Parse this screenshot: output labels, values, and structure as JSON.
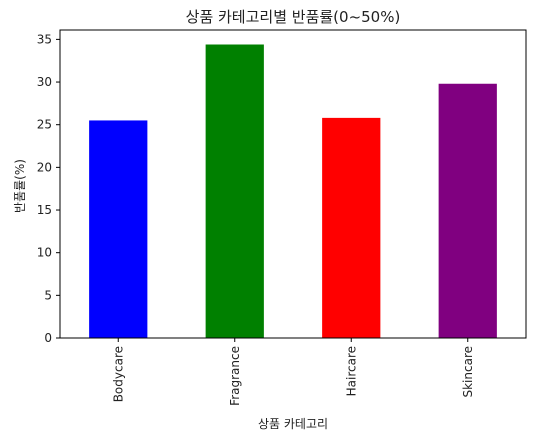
{
  "chart_data": {
    "type": "bar",
    "title": "상품 카테고리별 반품률(0~50%)",
    "xlabel": "상품 카테고리",
    "ylabel": "반품률(%)",
    "categories": [
      "Bodycare",
      "Fragrance",
      "Haircare",
      "Skincare"
    ],
    "values": [
      25.5,
      34.4,
      25.8,
      29.8
    ],
    "colors": [
      "#0000ff",
      "#008000",
      "#ff0000",
      "#800080"
    ],
    "ylim": [
      0,
      36.1
    ],
    "yticks": [
      0,
      5,
      10,
      15,
      20,
      25,
      30,
      35
    ],
    "grid": false,
    "legend": "none"
  }
}
